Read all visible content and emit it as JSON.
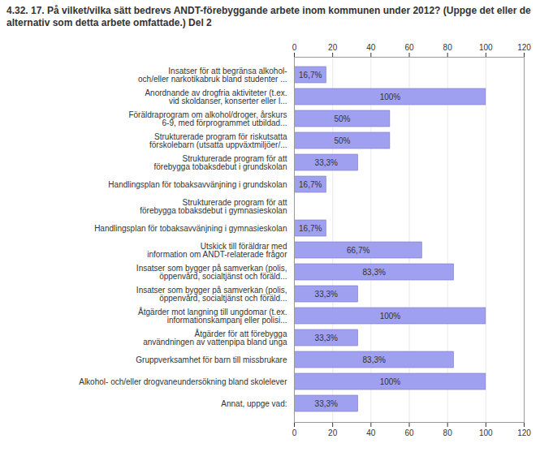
{
  "chart_data": {
    "type": "bar",
    "orientation": "horizontal",
    "title": "4.32. 17. På vilket/vilka sätt bedrevs ANDT-förebyggande arbete inom kommunen under 2012? (Uppge det eller de alternativ som detta arbete omfattade.) Del 2",
    "categories": [
      "Insatser för att begränsa alkohol-\noch/eller narkotikabruk bland studenter ...",
      "Anordnande av drogfria aktiviteter (t.ex.\nvid skoldanser, konserter eller l...",
      "Föräldraprogram om alkohol/droger, årskurs\n6-9, med förprogrammet utbildad...",
      "Strukturerade program för riskutsatta\nförskolebarn (utsatta uppväxtmiljöer/...",
      "Strukturerade program för att\nförebygga tobaksdebut i grundskolan",
      "Handlingsplan för tobaksavvänjning i grundskolan",
      "Strukturerade program för att\nförebygga tobaksdebut i gymnasieskolan",
      "Handlingsplan för tobaksavvänjning i gymnasieskolan",
      "Utskick till föräldrar med\ninformation om ANDT-relaterade frågor",
      "Insatser som bygger på samverkan (polis,\nöppenvård, socialtjänst och föräld...",
      "Insatser som bygger på samverkan (polis,\nöppenvård, socialtjänst och föräld...",
      "Åtgärder mot langning till ungdomar (t.ex.\ninformationskampanj eller polisi...",
      "Åtgärder för att förebygga\nanvändningen av vattenpipa bland unga",
      "Gruppverksamhet för barn till missbrukare",
      "Alkohol- och/eller drogvaneundersökning bland skolelever",
      "Annat, uppge vad:"
    ],
    "values": [
      16.7,
      100,
      50,
      50,
      33.3,
      16.7,
      0,
      16.7,
      66.7,
      83.3,
      33.3,
      100,
      33.3,
      83.3,
      100,
      33.3
    ],
    "value_labels": [
      "16,7%",
      "100%",
      "50%",
      "50%",
      "33,3%",
      "16,7%",
      null,
      "16,7%",
      "66,7%",
      "83,3%",
      "33,3%",
      "100%",
      "33,3%",
      "83,3%",
      "100%",
      "33,3%"
    ],
    "data_labels": true,
    "color": "#a0a0f0",
    "xlim": [
      0,
      120
    ],
    "xticks": [
      0,
      20,
      40,
      60,
      80,
      100,
      120
    ],
    "grid": true
  }
}
